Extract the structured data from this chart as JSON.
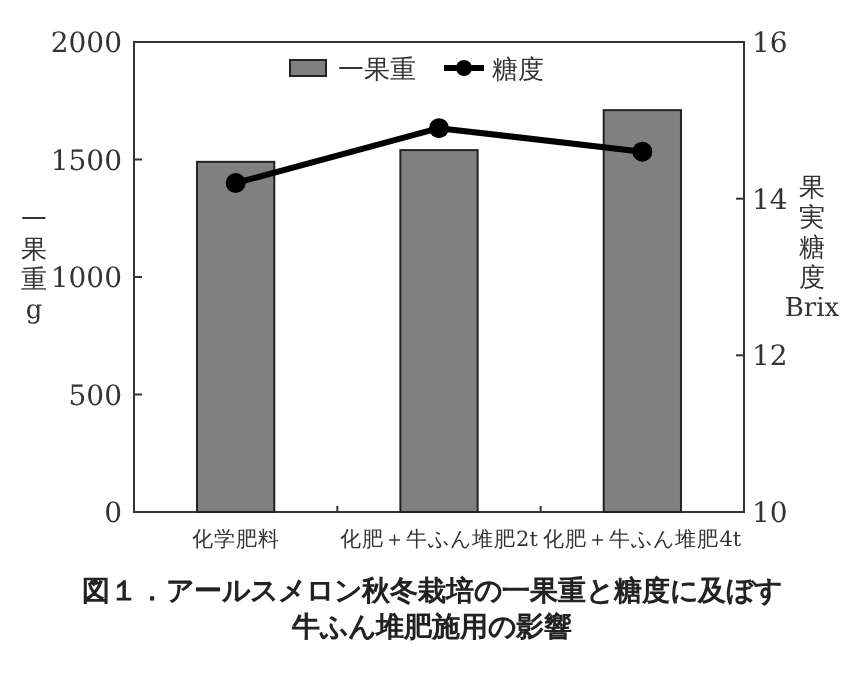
{
  "chart_data": {
    "type": "bar",
    "title": "図１．アールスメロン秋冬栽培の一果重と糖度に及ぼす牛ふん堆肥施用の影響",
    "categories": [
      "化学肥料",
      "化肥＋牛ふん堆肥2t",
      "化肥＋牛ふん堆肥4t"
    ],
    "series": [
      {
        "name": "一果重",
        "color": "#808080",
        "values": [
          1490,
          1540,
          1710
        ]
      },
      {
        "name": "糖度",
        "type": "line",
        "axis": "y2",
        "color": "#000000",
        "marker": "circle",
        "values": [
          14.2,
          14.9,
          14.6
        ]
      }
    ],
    "ylabel": "一果重 g",
    "y2label": "果実糖度 Brix",
    "ylim": [
      0,
      2000
    ],
    "yticks": [
      0,
      500,
      1000,
      1500,
      2000
    ],
    "y2lim": [
      10,
      16
    ],
    "y2ticks": [
      10,
      12,
      14,
      16
    ],
    "legend": "top",
    "grid": false
  }
}
